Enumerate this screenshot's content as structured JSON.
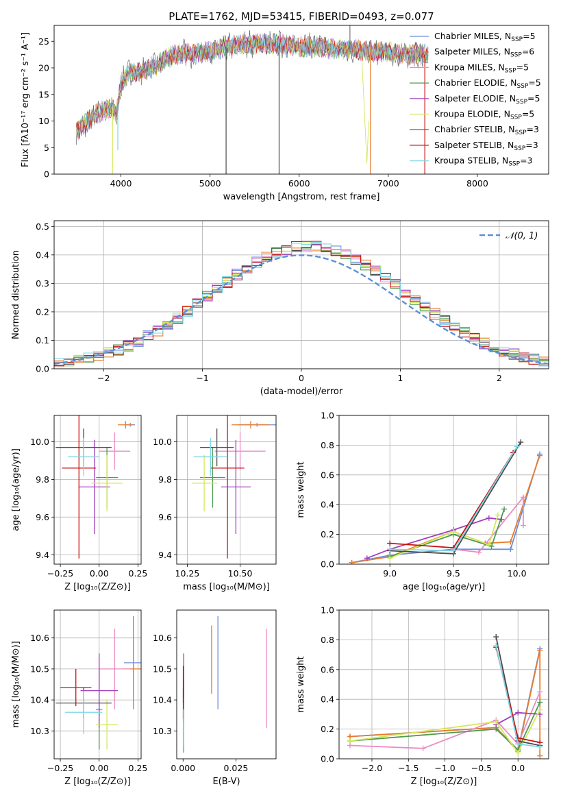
{
  "colors": {
    "chabrier_miles": "#6b8fdc",
    "salpeter_miles": "#e87c2c",
    "kroupa_miles": "#e98cc4",
    "chabrier_elodie": "#4f9a4f",
    "salpeter_elodie": "#a23dba",
    "kroupa_elodie": "#d2e85a",
    "chabrier_stelib": "#4a4a4a",
    "salpeter_stelib": "#c81414",
    "kroupa_stelib": "#7fd6e6",
    "grid": "#b0b0b0",
    "normal_curve": "#5b8fd6"
  },
  "chart_data": [
    {
      "id": "spectrum",
      "type": "line",
      "title": "PLATE=1762, MJD=53415, FIBERID=0493, z=0.077",
      "xlabel": "wavelength [Angstrom, rest frame]",
      "ylabel": "Flux [fλ10⁻¹⁷ erg cm⁻² s⁻¹ A⁻¹]",
      "xlim": [
        3250,
        8800
      ],
      "ylim": [
        0,
        28
      ],
      "xticks": [
        4000,
        5000,
        6000,
        7000,
        8000
      ],
      "yticks": [
        0,
        5,
        10,
        15,
        20,
        25
      ],
      "grid": false,
      "legend_position": "top-right",
      "continuum_x": [
        3500,
        3600,
        3700,
        3800,
        3900,
        3950,
        4000,
        4100,
        4200,
        4300,
        4400,
        4500,
        4600,
        4700,
        4800,
        4900,
        5000,
        5200,
        5400,
        5600,
        5800,
        6000,
        6200,
        6400,
        6600,
        6800,
        7000,
        7200,
        7400
      ],
      "continuum_y": [
        8,
        9.5,
        11,
        12,
        12.5,
        11,
        17,
        19.5,
        19,
        20,
        20.5,
        21.5,
        22.5,
        23,
        22.5,
        23,
        23,
        24,
        24.5,
        24.5,
        24.5,
        24,
        24,
        23.5,
        23.5,
        23,
        23,
        22.5,
        22.5
      ],
      "legend": [
        {
          "label": "Chabrier MILES, N",
          "sub": "SSP",
          "suffix": "=5",
          "color_key": "chabrier_miles"
        },
        {
          "label": "Salpeter MILES, N",
          "sub": "SSP",
          "suffix": "=6",
          "color_key": "salpeter_miles"
        },
        {
          "label": "Kroupa MILES, N",
          "sub": "SSP",
          "suffix": "=5",
          "color_key": "kroupa_miles"
        },
        {
          "label": "Chabrier ELODIE, N",
          "sub": "SSP",
          "suffix": "=5",
          "color_key": "chabrier_elodie"
        },
        {
          "label": "Salpeter ELODIE, N",
          "sub": "SSP",
          "suffix": "=5",
          "color_key": "salpeter_elodie"
        },
        {
          "label": "Kroupa ELODIE, N",
          "sub": "SSP",
          "suffix": "=5",
          "color_key": "kroupa_elodie"
        },
        {
          "label": "Chabrier STELIB, N",
          "sub": "SSP",
          "suffix": "=3",
          "color_key": "chabrier_stelib"
        },
        {
          "label": "Salpeter STELIB, N",
          "sub": "SSP",
          "suffix": "=3",
          "color_key": "salpeter_stelib"
        },
        {
          "label": "Kroupa STELIB, N",
          "sub": "SSP",
          "suffix": "=3",
          "color_key": "kroupa_stelib"
        }
      ]
    },
    {
      "id": "residuals",
      "type": "line",
      "xlabel": "(data-model)/error",
      "ylabel": "Normed distribution",
      "xlim": [
        -2.5,
        2.5
      ],
      "ylim": [
        0,
        0.52
      ],
      "xticks": [
        -2,
        -1,
        0,
        1,
        2
      ],
      "yticks": [
        0.0,
        0.1,
        0.2,
        0.3,
        0.4,
        0.5
      ],
      "grid": true,
      "legend_position": "top-right",
      "normal_label": "𝒩(0, 1)",
      "bin_width": 0.1,
      "bin_start": -2.5
    },
    {
      "id": "age_vs_z",
      "type": "scatter",
      "xlabel": "Z [log₁₀(Z/Z⊙)]",
      "ylabel": "age  [log₁₀(age/yr)]",
      "xlim": [
        -0.29,
        0.27
      ],
      "ylim": [
        9.35,
        10.14
      ],
      "xticks": [
        -0.25,
        0.0,
        0.25
      ],
      "yticks": [
        9.4,
        9.6,
        9.8,
        10.0
      ],
      "grid": true,
      "points": [
        {
          "color_key": "chabrier_miles",
          "x": 0.2,
          "xerr": 0.03,
          "y": 10.09,
          "yerr": 0.01
        },
        {
          "color_key": "salpeter_miles",
          "x": 0.17,
          "xerr": 0.05,
          "y": 10.09,
          "yerr": 0.02
        },
        {
          "color_key": "kroupa_miles",
          "x": 0.1,
          "xerr": 0.1,
          "y": 9.95,
          "yerr": 0.1
        },
        {
          "color_key": "chabrier_elodie",
          "x": 0.05,
          "xerr": 0.07,
          "y": 9.81,
          "yerr": 0.16
        },
        {
          "color_key": "salpeter_elodie",
          "x": -0.03,
          "xerr": 0.1,
          "y": 9.76,
          "yerr": 0.25
        },
        {
          "color_key": "kroupa_elodie",
          "x": 0.05,
          "xerr": 0.1,
          "y": 9.78,
          "yerr": 0.15
        },
        {
          "color_key": "chabrier_stelib",
          "x": -0.1,
          "xerr": 0.18,
          "y": 9.97,
          "yerr": 0.1
        },
        {
          "color_key": "salpeter_stelib",
          "x": -0.13,
          "xerr": 0.11,
          "y": 9.86,
          "yerr": 0.48
        },
        {
          "color_key": "kroupa_stelib",
          "x": -0.1,
          "xerr": 0.1,
          "y": 9.92,
          "yerr": 0.1
        }
      ]
    },
    {
      "id": "age_vs_mass",
      "type": "scatter",
      "xlabel": "mass [log₁₀(M/M⊙)]",
      "ylabel": "",
      "xlim": [
        10.2,
        10.67
      ],
      "ylim": [
        9.35,
        10.14
      ],
      "xticks": [
        10.25,
        10.5
      ],
      "yticks": [
        9.4,
        9.6,
        9.8,
        10.0
      ],
      "grid": true,
      "points": [
        {
          "color_key": "chabrier_miles",
          "x": 10.58,
          "xerr": 0.09,
          "y": 10.09,
          "yerr": 0.01
        },
        {
          "color_key": "salpeter_miles",
          "x": 10.55,
          "xerr": 0.09,
          "y": 10.09,
          "yerr": 0.02
        },
        {
          "color_key": "kroupa_miles",
          "x": 10.5,
          "xerr": 0.12,
          "y": 9.95,
          "yerr": 0.1
        },
        {
          "color_key": "chabrier_elodie",
          "x": 10.37,
          "xerr": 0.06,
          "y": 9.81,
          "yerr": 0.16
        },
        {
          "color_key": "salpeter_elodie",
          "x": 10.48,
          "xerr": 0.07,
          "y": 9.76,
          "yerr": 0.25
        },
        {
          "color_key": "kroupa_elodie",
          "x": 10.33,
          "xerr": 0.06,
          "y": 9.78,
          "yerr": 0.15
        },
        {
          "color_key": "chabrier_stelib",
          "x": 10.39,
          "xerr": 0.08,
          "y": 9.97,
          "yerr": 0.1
        },
        {
          "color_key": "salpeter_stelib",
          "x": 10.44,
          "xerr": 0.08,
          "y": 9.86,
          "yerr": 0.48
        },
        {
          "color_key": "kroupa_stelib",
          "x": 10.36,
          "xerr": 0.08,
          "y": 9.92,
          "yerr": 0.1
        }
      ]
    },
    {
      "id": "massweight_vs_age",
      "type": "line",
      "xlabel": "age  [log₁₀(age/yr)]",
      "ylabel": "mass weight",
      "xlim": [
        8.6,
        10.25
      ],
      "ylim": [
        0,
        1.0
      ],
      "xticks": [
        9.0,
        9.5,
        10.0
      ],
      "yticks": [
        0.0,
        0.2,
        0.4,
        0.6,
        0.8,
        1.0
      ],
      "grid": true,
      "series": [
        {
          "color_key": "chabrier_miles",
          "x": [
            8.7,
            9.0,
            9.5,
            9.95,
            10.18
          ],
          "y": [
            0.01,
            0.06,
            0.1,
            0.1,
            0.74
          ]
        },
        {
          "color_key": "salpeter_miles",
          "x": [
            8.7,
            9.0,
            9.5,
            9.75,
            9.95,
            10.18
          ],
          "y": [
            0.01,
            0.05,
            0.22,
            0.14,
            0.15,
            0.73
          ]
        },
        {
          "color_key": "kroupa_miles",
          "x": [
            9.5,
            9.7,
            10.05,
            10.05
          ],
          "y": [
            0.1,
            0.08,
            0.45,
            0.26
          ]
        },
        {
          "color_key": "chabrier_elodie",
          "x": [
            9.0,
            9.5,
            9.8,
            9.9
          ],
          "y": [
            0.05,
            0.2,
            0.12,
            0.37
          ]
        },
        {
          "color_key": "salpeter_elodie",
          "x": [
            8.82,
            9.0,
            9.5,
            9.78,
            9.88
          ],
          "y": [
            0.04,
            0.1,
            0.23,
            0.31,
            0.3
          ]
        },
        {
          "color_key": "kroupa_elodie",
          "x": [
            9.0,
            9.5,
            9.78,
            9.85
          ],
          "y": [
            0.04,
            0.22,
            0.13,
            0.33
          ]
        },
        {
          "color_key": "chabrier_stelib",
          "x": [
            9.0,
            9.5,
            10.03
          ],
          "y": [
            0.09,
            0.07,
            0.82
          ]
        },
        {
          "color_key": "salpeter_stelib",
          "x": [
            9.0,
            9.5,
            9.97
          ],
          "y": [
            0.14,
            0.11,
            0.75
          ]
        },
        {
          "color_key": "kroupa_stelib",
          "x": [
            9.0,
            9.5,
            10.0
          ],
          "y": [
            0.1,
            0.09,
            0.79
          ]
        }
      ]
    },
    {
      "id": "mass_vs_z",
      "type": "scatter",
      "xlabel": "Z [log₁₀(Z/Z⊙)]",
      "ylabel": "mass [log₁₀(M/M⊙)]",
      "xlim": [
        -0.29,
        0.27
      ],
      "ylim": [
        10.21,
        10.69
      ],
      "xticks": [
        -0.25,
        0.0,
        0.25
      ],
      "yticks": [
        10.3,
        10.4,
        10.5,
        10.6
      ],
      "grid": true,
      "points": [
        {
          "color_key": "chabrier_miles",
          "x": 0.22,
          "xerr": 0.06,
          "y": 10.52,
          "yerr": 0.15
        },
        {
          "color_key": "salpeter_miles",
          "x": 0.22,
          "xerr": 0.06,
          "y": 10.5,
          "yerr": 0.08
        },
        {
          "color_key": "kroupa_miles",
          "x": 0.1,
          "xerr": 0.1,
          "y": 10.5,
          "yerr": 0.13
        },
        {
          "color_key": "chabrier_elodie",
          "x": 0.0,
          "xerr": 0.02,
          "y": 10.37,
          "yerr": 0.13
        },
        {
          "color_key": "salpeter_elodie",
          "x": 0.0,
          "xerr": 0.12,
          "y": 10.43,
          "yerr": 0.12
        },
        {
          "color_key": "kroupa_elodie",
          "x": 0.05,
          "xerr": 0.07,
          "y": 10.32,
          "yerr": 0.08
        },
        {
          "color_key": "chabrier_stelib",
          "x": -0.1,
          "xerr": 0.18,
          "y": 10.39,
          "yerr": 0.05
        },
        {
          "color_key": "salpeter_stelib",
          "x": -0.15,
          "xerr": 0.1,
          "y": 10.44,
          "yerr": 0.06
        },
        {
          "color_key": "kroupa_stelib",
          "x": -0.1,
          "xerr": 0.12,
          "y": 10.36,
          "yerr": 0.07
        }
      ]
    },
    {
      "id": "mass_vs_ebv",
      "type": "scatter",
      "xlabel": "E(B-V)",
      "ylabel": "",
      "xlim": [
        -0.003,
        0.044
      ],
      "ylim": [
        10.21,
        10.69
      ],
      "xticks": [
        0.0,
        0.025
      ],
      "yticks": [
        10.3,
        10.4,
        10.5,
        10.6
      ],
      "grid": false,
      "points": [
        {
          "color_key": "chabrier_miles",
          "x": 0.0165,
          "xerr": 0,
          "y": 10.52,
          "yerr": 0.15
        },
        {
          "color_key": "salpeter_miles",
          "x": 0.0135,
          "xerr": 0,
          "y": 10.53,
          "yerr": 0.11
        },
        {
          "color_key": "kroupa_miles",
          "x": 0.0395,
          "xerr": 0,
          "y": 10.47,
          "yerr": 0.16
        },
        {
          "color_key": "chabrier_elodie",
          "x": 0.0003,
          "xerr": 0,
          "y": 10.35,
          "yerr": 0.12
        },
        {
          "color_key": "salpeter_elodie",
          "x": 0.0003,
          "xerr": 0,
          "y": 10.44,
          "yerr": 0.11
        },
        {
          "color_key": "kroupa_elodie",
          "x": 0.0002,
          "xerr": 0,
          "y": 10.33,
          "yerr": 0.08
        },
        {
          "color_key": "chabrier_stelib",
          "x": 0.0001,
          "xerr": 0,
          "y": 10.39,
          "yerr": 0.05
        },
        {
          "color_key": "salpeter_stelib",
          "x": 0.0001,
          "xerr": 0,
          "y": 10.45,
          "yerr": 0.06
        },
        {
          "color_key": "kroupa_stelib",
          "x": 0.0001,
          "xerr": 0,
          "y": 10.3,
          "yerr": 0.07
        }
      ]
    },
    {
      "id": "massweight_vs_z",
      "type": "line",
      "xlabel": "Z [log₁₀(Z/Z⊙)]",
      "ylabel": "mass weight",
      "xlim": [
        -2.45,
        0.42
      ],
      "ylim": [
        0,
        1.0
      ],
      "xticks": [
        -2.0,
        -1.5,
        -1.0,
        -0.5,
        0.0
      ],
      "yticks": [
        0.0,
        0.2,
        0.4,
        0.6,
        0.8,
        1.0
      ],
      "grid": true,
      "series": [
        {
          "color_key": "chabrier_miles",
          "x": [
            -2.3,
            -0.3,
            0.0,
            0.3
          ],
          "y": [
            0.15,
            0.21,
            0.06,
            0.74
          ]
        },
        {
          "color_key": "salpeter_miles",
          "x": [
            -2.3,
            -0.3,
            0.0,
            0.3,
            0.3
          ],
          "y": [
            0.15,
            0.21,
            0.05,
            0.73,
            0.02
          ]
        },
        {
          "color_key": "kroupa_miles",
          "x": [
            -2.3,
            -1.3,
            -0.3,
            0.0,
            0.3
          ],
          "y": [
            0.09,
            0.07,
            0.26,
            0.1,
            0.45
          ]
        },
        {
          "color_key": "chabrier_elodie",
          "x": [
            -2.3,
            -0.3,
            0.0,
            0.3
          ],
          "y": [
            0.12,
            0.2,
            0.06,
            0.38
          ]
        },
        {
          "color_key": "salpeter_elodie",
          "x": [
            -0.3,
            0.0,
            0.3
          ],
          "y": [
            0.23,
            0.31,
            0.3
          ]
        },
        {
          "color_key": "kroupa_elodie",
          "x": [
            -2.3,
            -0.3,
            0.0,
            0.3
          ],
          "y": [
            0.12,
            0.25,
            0.04,
            0.33
          ]
        },
        {
          "color_key": "chabrier_stelib",
          "x": [
            -0.3,
            0.0,
            0.3
          ],
          "y": [
            0.82,
            0.12,
            0.09
          ]
        },
        {
          "color_key": "salpeter_stelib",
          "x": [
            -0.3,
            0.0,
            0.3
          ],
          "y": [
            0.75,
            0.14,
            0.11
          ]
        },
        {
          "color_key": "kroupa_stelib",
          "x": [
            -0.3,
            0.0,
            0.3
          ],
          "y": [
            0.76,
            0.1,
            0.08
          ]
        }
      ]
    }
  ]
}
